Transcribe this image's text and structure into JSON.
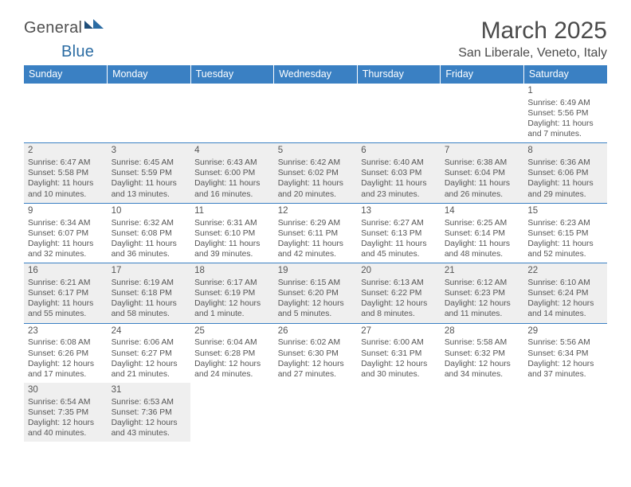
{
  "brand": {
    "general": "General",
    "blue": "Blue"
  },
  "title": "March 2025",
  "location": "San Liberale, Veneto, Italy",
  "colors": {
    "header_bg": "#3a80c3",
    "header_fg": "#ffffff",
    "rule": "#3a80c3",
    "shade": "#efefef",
    "text": "#555555",
    "page_bg": "#ffffff",
    "logo_blue": "#2b6ca3"
  },
  "typography": {
    "month_title_size": 30,
    "location_size": 16,
    "weekday_size": 12.5,
    "cell_size": 10.3,
    "daynum_size": 11.5
  },
  "weekdays": [
    "Sunday",
    "Monday",
    "Tuesday",
    "Wednesday",
    "Thursday",
    "Friday",
    "Saturday"
  ],
  "grid": [
    [
      {
        "empty": true
      },
      {
        "empty": true
      },
      {
        "empty": true
      },
      {
        "empty": true
      },
      {
        "empty": true
      },
      {
        "empty": true
      },
      {
        "day": "1",
        "sunrise": "Sunrise: 6:49 AM",
        "sunset": "Sunset: 5:56 PM",
        "daylight": "Daylight: 11 hours and 7 minutes.",
        "shade": false
      }
    ],
    [
      {
        "day": "2",
        "sunrise": "Sunrise: 6:47 AM",
        "sunset": "Sunset: 5:58 PM",
        "daylight": "Daylight: 11 hours and 10 minutes.",
        "shade": true
      },
      {
        "day": "3",
        "sunrise": "Sunrise: 6:45 AM",
        "sunset": "Sunset: 5:59 PM",
        "daylight": "Daylight: 11 hours and 13 minutes.",
        "shade": true
      },
      {
        "day": "4",
        "sunrise": "Sunrise: 6:43 AM",
        "sunset": "Sunset: 6:00 PM",
        "daylight": "Daylight: 11 hours and 16 minutes.",
        "shade": true
      },
      {
        "day": "5",
        "sunrise": "Sunrise: 6:42 AM",
        "sunset": "Sunset: 6:02 PM",
        "daylight": "Daylight: 11 hours and 20 minutes.",
        "shade": true
      },
      {
        "day": "6",
        "sunrise": "Sunrise: 6:40 AM",
        "sunset": "Sunset: 6:03 PM",
        "daylight": "Daylight: 11 hours and 23 minutes.",
        "shade": true
      },
      {
        "day": "7",
        "sunrise": "Sunrise: 6:38 AM",
        "sunset": "Sunset: 6:04 PM",
        "daylight": "Daylight: 11 hours and 26 minutes.",
        "shade": true
      },
      {
        "day": "8",
        "sunrise": "Sunrise: 6:36 AM",
        "sunset": "Sunset: 6:06 PM",
        "daylight": "Daylight: 11 hours and 29 minutes.",
        "shade": true
      }
    ],
    [
      {
        "day": "9",
        "sunrise": "Sunrise: 6:34 AM",
        "sunset": "Sunset: 6:07 PM",
        "daylight": "Daylight: 11 hours and 32 minutes.",
        "shade": false
      },
      {
        "day": "10",
        "sunrise": "Sunrise: 6:32 AM",
        "sunset": "Sunset: 6:08 PM",
        "daylight": "Daylight: 11 hours and 36 minutes.",
        "shade": false
      },
      {
        "day": "11",
        "sunrise": "Sunrise: 6:31 AM",
        "sunset": "Sunset: 6:10 PM",
        "daylight": "Daylight: 11 hours and 39 minutes.",
        "shade": false
      },
      {
        "day": "12",
        "sunrise": "Sunrise: 6:29 AM",
        "sunset": "Sunset: 6:11 PM",
        "daylight": "Daylight: 11 hours and 42 minutes.",
        "shade": false
      },
      {
        "day": "13",
        "sunrise": "Sunrise: 6:27 AM",
        "sunset": "Sunset: 6:13 PM",
        "daylight": "Daylight: 11 hours and 45 minutes.",
        "shade": false
      },
      {
        "day": "14",
        "sunrise": "Sunrise: 6:25 AM",
        "sunset": "Sunset: 6:14 PM",
        "daylight": "Daylight: 11 hours and 48 minutes.",
        "shade": false
      },
      {
        "day": "15",
        "sunrise": "Sunrise: 6:23 AM",
        "sunset": "Sunset: 6:15 PM",
        "daylight": "Daylight: 11 hours and 52 minutes.",
        "shade": false
      }
    ],
    [
      {
        "day": "16",
        "sunrise": "Sunrise: 6:21 AM",
        "sunset": "Sunset: 6:17 PM",
        "daylight": "Daylight: 11 hours and 55 minutes.",
        "shade": true
      },
      {
        "day": "17",
        "sunrise": "Sunrise: 6:19 AM",
        "sunset": "Sunset: 6:18 PM",
        "daylight": "Daylight: 11 hours and 58 minutes.",
        "shade": true
      },
      {
        "day": "18",
        "sunrise": "Sunrise: 6:17 AM",
        "sunset": "Sunset: 6:19 PM",
        "daylight": "Daylight: 12 hours and 1 minute.",
        "shade": true
      },
      {
        "day": "19",
        "sunrise": "Sunrise: 6:15 AM",
        "sunset": "Sunset: 6:20 PM",
        "daylight": "Daylight: 12 hours and 5 minutes.",
        "shade": true
      },
      {
        "day": "20",
        "sunrise": "Sunrise: 6:13 AM",
        "sunset": "Sunset: 6:22 PM",
        "daylight": "Daylight: 12 hours and 8 minutes.",
        "shade": true
      },
      {
        "day": "21",
        "sunrise": "Sunrise: 6:12 AM",
        "sunset": "Sunset: 6:23 PM",
        "daylight": "Daylight: 12 hours and 11 minutes.",
        "shade": true
      },
      {
        "day": "22",
        "sunrise": "Sunrise: 6:10 AM",
        "sunset": "Sunset: 6:24 PM",
        "daylight": "Daylight: 12 hours and 14 minutes.",
        "shade": true
      }
    ],
    [
      {
        "day": "23",
        "sunrise": "Sunrise: 6:08 AM",
        "sunset": "Sunset: 6:26 PM",
        "daylight": "Daylight: 12 hours and 17 minutes.",
        "shade": false
      },
      {
        "day": "24",
        "sunrise": "Sunrise: 6:06 AM",
        "sunset": "Sunset: 6:27 PM",
        "daylight": "Daylight: 12 hours and 21 minutes.",
        "shade": false
      },
      {
        "day": "25",
        "sunrise": "Sunrise: 6:04 AM",
        "sunset": "Sunset: 6:28 PM",
        "daylight": "Daylight: 12 hours and 24 minutes.",
        "shade": false
      },
      {
        "day": "26",
        "sunrise": "Sunrise: 6:02 AM",
        "sunset": "Sunset: 6:30 PM",
        "daylight": "Daylight: 12 hours and 27 minutes.",
        "shade": false
      },
      {
        "day": "27",
        "sunrise": "Sunrise: 6:00 AM",
        "sunset": "Sunset: 6:31 PM",
        "daylight": "Daylight: 12 hours and 30 minutes.",
        "shade": false
      },
      {
        "day": "28",
        "sunrise": "Sunrise: 5:58 AM",
        "sunset": "Sunset: 6:32 PM",
        "daylight": "Daylight: 12 hours and 34 minutes.",
        "shade": false
      },
      {
        "day": "29",
        "sunrise": "Sunrise: 5:56 AM",
        "sunset": "Sunset: 6:34 PM",
        "daylight": "Daylight: 12 hours and 37 minutes.",
        "shade": false
      }
    ],
    [
      {
        "day": "30",
        "sunrise": "Sunrise: 6:54 AM",
        "sunset": "Sunset: 7:35 PM",
        "daylight": "Daylight: 12 hours and 40 minutes.",
        "shade": true
      },
      {
        "day": "31",
        "sunrise": "Sunrise: 6:53 AM",
        "sunset": "Sunset: 7:36 PM",
        "daylight": "Daylight: 12 hours and 43 minutes.",
        "shade": true
      },
      {
        "empty": true
      },
      {
        "empty": true
      },
      {
        "empty": true
      },
      {
        "empty": true
      },
      {
        "empty": true
      }
    ]
  ]
}
